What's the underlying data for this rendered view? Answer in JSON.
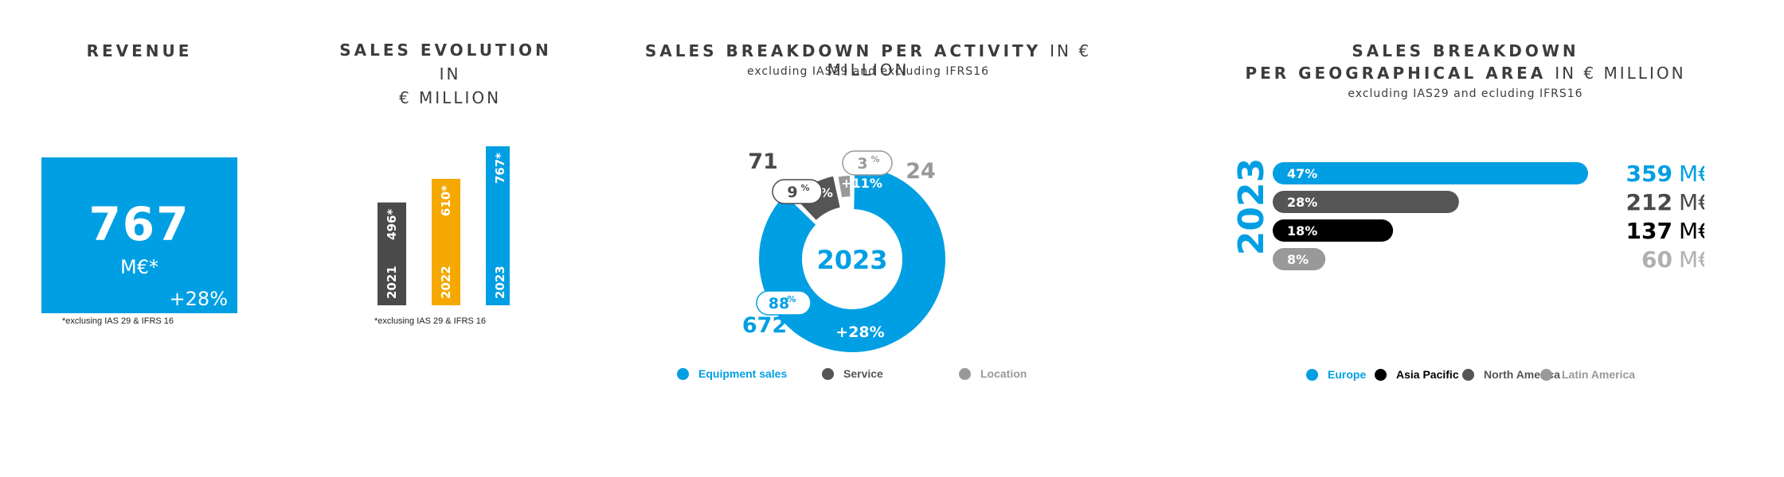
{
  "revenue": {
    "title": "REVENUE",
    "value": "767",
    "unit": "M€*",
    "growth": "+28%",
    "note": "*exclusing IAS 29 & IFRS 16",
    "color": "#009fe3"
  },
  "sales_evolution": {
    "title_bold": "SALES EVOLUTION",
    "title_light_1": "IN",
    "title_light_2": "€ MILLION",
    "note": "*exclusing IAS 29 & IFRS 16"
  },
  "activity": {
    "title_bold": "SALES BREAKDOWN PER ACTIVITY",
    "title_light": "IN € MILLION",
    "subtitle": "excluding IAS29 and excluding IFRS16",
    "center_label": "2023",
    "legend": [
      {
        "label": "Equipment sales",
        "color": "#009fe3"
      },
      {
        "label": "Service",
        "color": "#555555"
      },
      {
        "label": "Location",
        "color": "#999999"
      }
    ]
  },
  "geo": {
    "title_line1": "SALES BREAKDOWN",
    "title_line2_bold": "PER GEOGRAPHICAL AREA",
    "title_line2_light": "IN € MILLION",
    "subtitle": "excluding IAS29 and ecluding IFRS16",
    "year_label": "2023",
    "unit": "M€",
    "legend": [
      {
        "label": "Europe",
        "color": "#009fe3"
      },
      {
        "label": "Asia Pacific",
        "color": "#000000"
      },
      {
        "label": "North America",
        "color": "#555555"
      },
      {
        "label": "Latin America",
        "color": "#999999"
      }
    ]
  },
  "chart_data": [
    {
      "type": "bar",
      "categories": [
        "2021",
        "2022",
        "2023"
      ],
      "values": [
        496,
        610,
        767
      ],
      "value_labels": [
        "496*",
        "610*",
        "767*"
      ],
      "colors": [
        "#4a4a4a",
        "#f5a800",
        "#009fe3"
      ]
    },
    {
      "type": "pie",
      "categories": [
        "Equipment sales",
        "Service",
        "Location"
      ],
      "values": [
        672,
        71,
        24
      ],
      "value_labels": [
        "672",
        "71",
        "24"
      ],
      "percents": [
        "88",
        "9",
        "3"
      ],
      "percent_sign": "%",
      "growth_labels": [
        "+28%",
        "+11%",
        "+11%"
      ],
      "colors": [
        "#009fe3",
        "#555555",
        "#999999"
      ]
    },
    {
      "type": "bar",
      "categories": [
        "Europe",
        "North America",
        "Asia Pacific",
        "Latin America"
      ],
      "values": [
        359,
        212,
        137,
        60
      ],
      "percents": [
        "47%",
        "28%",
        "18%",
        "8%"
      ],
      "colors": [
        "#009fe3",
        "#555555",
        "#000000",
        "#999999"
      ],
      "value_colors": [
        "#009fe3",
        "#4a4a4a",
        "#000000",
        "#b0b0b0"
      ]
    }
  ]
}
